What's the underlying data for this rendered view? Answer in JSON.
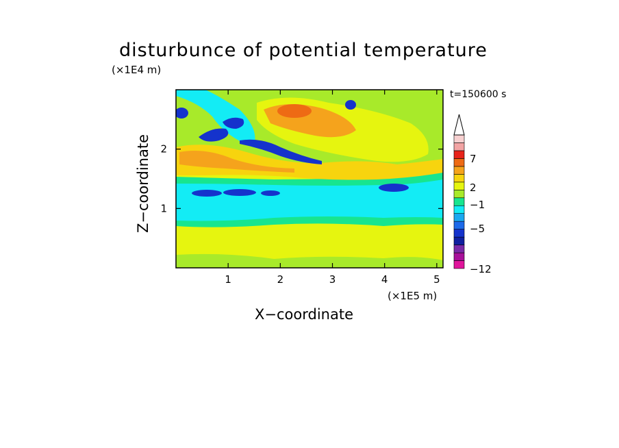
{
  "chart_data": {
    "type": "heatmap",
    "title": "disturbunce of potential temperature",
    "xlabel": "X−coordinate",
    "ylabel": "Z−coordinate",
    "x_unit": "(×1E5 m)",
    "y_unit": "(×1E4 m)",
    "time_label": "t=150600 s",
    "xlim": [
      0,
      5.12
    ],
    "ylim": [
      0,
      3.0
    ],
    "x_ticks": [
      1,
      2,
      3,
      4,
      5
    ],
    "y_ticks": [
      1,
      2
    ],
    "colorbar": {
      "levels": [
        -12,
        -10,
        -8,
        -6,
        -5,
        -4,
        -3,
        -2,
        -1,
        0,
        1,
        2,
        3,
        5,
        7,
        9,
        11
      ],
      "colors": [
        "#e0159b",
        "#a8119a",
        "#7a2aa8",
        "#1020a0",
        "#1533cc",
        "#1d6aea",
        "#1aa8f0",
        "#13ecf5",
        "#17e58f",
        "#a8ea2a",
        "#e6f50f",
        "#f7d40e",
        "#f5a31c",
        "#ee6a14",
        "#e8231a",
        "#f2a3a3",
        "#f7d0d0"
      ],
      "tick_labels": [
        "7",
        "2",
        "−1",
        "−5",
        "−12"
      ],
      "extend": "max"
    },
    "regions": [
      {
        "desc": "surface layer",
        "value": 0.5
      },
      {
        "desc": "warm lower layer",
        "value": 1.5
      },
      {
        "desc": "cold band near z=1",
        "value": -1.5
      },
      {
        "desc": "cold cells near z=1.3",
        "value": -5
      },
      {
        "desc": "warm band near z=1.8",
        "value": 2.5
      },
      {
        "desc": "cold streaks upper left",
        "value": -5
      },
      {
        "desc": "warm plume upper middle",
        "value": 3.5
      }
    ]
  }
}
